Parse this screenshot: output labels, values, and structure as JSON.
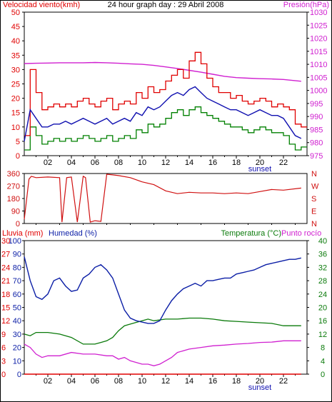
{
  "header": {
    "left_label": "Velocidad viento(kmh)",
    "title": "24 hour graph day : 29 Abril 2008",
    "right_label": "Presión(hPa)"
  },
  "lower_header": {
    "rain_label": "Lluvia (mm)",
    "humidity_label": "Humedad (%)",
    "temperature_label": "Temperatura (°C)",
    "dewpoint_label": "Punto rocío"
  },
  "colors": {
    "frame": "#000000",
    "wind_gust": "#e00000",
    "wind_avg": "#1010b0",
    "wind_low": "#008000",
    "pressure": "#d020d0",
    "direction": "#d01010",
    "humidity": "#0b1ea6",
    "temperature": "#0a7a0a",
    "dewpoint": "#d020d0",
    "rain": "#e00000",
    "grid": "#000000"
  },
  "chart_data": [
    {
      "type": "line",
      "title": "24 hour graph day : 29 Abril 2008",
      "x_ticks": [
        "02",
        "04",
        "06",
        "08",
        "10",
        "12",
        "14",
        "16",
        "18",
        "20",
        "22"
      ],
      "x_note": "sunset",
      "y_left": {
        "label": "Velocidad viento(kmh)",
        "range": [
          0,
          50
        ],
        "ticks": [
          "0",
          "5",
          "10",
          "15",
          "20",
          "25",
          "30",
          "35",
          "40",
          "45",
          "50"
        ]
      },
      "y_right": {
        "label": "Presión(hPa)",
        "range": [
          975,
          1030
        ],
        "ticks": [
          "975",
          "980",
          "985",
          "990",
          "995",
          "1000",
          "1005",
          "1010",
          "1015",
          "1020",
          "1025",
          "1030"
        ]
      },
      "series": [
        {
          "key": "gust",
          "x": [
            0,
            0.5,
            1,
            1.5,
            2,
            2.5,
            3,
            3.5,
            4,
            4.5,
            5,
            5.5,
            6,
            6.5,
            7,
            7.5,
            8,
            8.5,
            9,
            9.5,
            10,
            10.5,
            11,
            11.5,
            12,
            12.5,
            13,
            13.5,
            14,
            14.5,
            15,
            15.5,
            16,
            16.5,
            17,
            17.5,
            18,
            18.5,
            19,
            19.5,
            20,
            20.5,
            21,
            21.5,
            22,
            22.5,
            23,
            23.5
          ],
          "y": [
            7,
            30,
            22,
            16,
            17,
            18,
            17,
            18,
            17,
            19,
            20,
            18,
            17,
            19,
            20,
            16,
            18,
            19,
            18,
            22,
            20,
            24,
            22,
            23,
            26,
            28,
            30,
            27,
            33,
            36,
            32,
            27,
            24,
            22,
            22,
            20,
            21,
            19,
            18,
            19,
            20,
            19,
            17,
            18,
            17,
            16,
            11,
            10
          ]
        },
        {
          "key": "avg",
          "x": [
            0,
            0.5,
            1,
            1.5,
            2,
            2.5,
            3,
            3.5,
            4,
            4.5,
            5,
            5.5,
            6,
            6.5,
            7,
            7.5,
            8,
            8.5,
            9,
            9.5,
            10,
            10.5,
            11,
            11.5,
            12,
            12.5,
            13,
            13.5,
            14,
            14.5,
            15,
            15.5,
            16,
            16.5,
            17,
            17.5,
            18,
            18.5,
            19,
            19.5,
            20,
            20.5,
            21,
            21.5,
            22,
            22.5,
            23,
            23.5
          ],
          "y": [
            5,
            16,
            13,
            10,
            10,
            11,
            11,
            12,
            11,
            12,
            13,
            12,
            11,
            12,
            13,
            11,
            12,
            13,
            12,
            15,
            14,
            17,
            16,
            17,
            19,
            21,
            22,
            21,
            23,
            24,
            22,
            20,
            19,
            18,
            17,
            16,
            16,
            15,
            14,
            15,
            16,
            15,
            14,
            14,
            13,
            10,
            7,
            6
          ]
        },
        {
          "key": "low",
          "x": [
            0,
            0.5,
            1,
            1.5,
            2,
            2.5,
            3,
            3.5,
            4,
            4.5,
            5,
            5.5,
            6,
            6.5,
            7,
            7.5,
            8,
            8.5,
            9,
            9.5,
            10,
            10.5,
            11,
            11.5,
            12,
            12.5,
            13,
            13.5,
            14,
            14.5,
            15,
            15.5,
            16,
            16.5,
            17,
            17.5,
            18,
            18.5,
            19,
            19.5,
            20,
            20.5,
            21,
            21.5,
            22,
            22.5,
            23,
            23.5
          ],
          "y": [
            2,
            10,
            7,
            4,
            5,
            6,
            5,
            6,
            5,
            6,
            7,
            6,
            5,
            6,
            7,
            5,
            6,
            7,
            6,
            9,
            8,
            11,
            10,
            11,
            13,
            15,
            16,
            14,
            16,
            17,
            15,
            14,
            13,
            12,
            11,
            10,
            10,
            9,
            8,
            9,
            10,
            9,
            8,
            8,
            7,
            4,
            2,
            3
          ]
        },
        {
          "key": "pressure",
          "x": [
            0,
            1,
            2,
            3,
            4,
            5,
            6,
            7,
            8,
            9,
            10,
            11,
            12,
            13,
            14,
            15,
            16,
            17,
            18,
            19,
            20,
            21,
            22,
            23.5
          ],
          "y": [
            1010.3,
            1010.4,
            1010.5,
            1010.6,
            1010.6,
            1010.6,
            1010.7,
            1010.6,
            1010.4,
            1010.2,
            1010.0,
            1009.6,
            1009.0,
            1008.4,
            1007.7,
            1007.0,
            1006.2,
            1005.4,
            1004.9,
            1004.7,
            1004.5,
            1004.4,
            1004.2,
            1003.5
          ]
        }
      ]
    },
    {
      "type": "line",
      "y_left": {
        "range": [
          0,
          360
        ],
        "ticks": [
          "0",
          "90",
          "180",
          "270",
          "360"
        ]
      },
      "y_right": {
        "ticks": [
          "N",
          "E",
          "S",
          "W",
          "N"
        ]
      },
      "series": [
        {
          "key": "direction",
          "x": [
            0,
            0.4,
            0.6,
            1,
            2,
            3,
            3.2,
            3.6,
            4,
            4.5,
            5,
            5.2,
            5.6,
            6,
            6.5,
            7,
            7.5,
            8,
            9,
            10,
            11,
            12,
            13,
            14,
            15,
            16,
            17,
            18,
            19,
            20,
            21,
            22,
            23.5
          ],
          "y": [
            30,
            320,
            340,
            330,
            335,
            330,
            10,
            330,
            335,
            10,
            340,
            330,
            10,
            20,
            15,
            355,
            350,
            345,
            330,
            300,
            280,
            235,
            215,
            225,
            220,
            220,
            215,
            220,
            215,
            230,
            245,
            240,
            255
          ]
        }
      ]
    },
    {
      "type": "line",
      "y_left_rain": {
        "label": "Lluvia (mm)",
        "range": [
          0,
          30
        ],
        "ticks": [
          "0",
          "3",
          "6",
          "9",
          "12",
          "15",
          "18",
          "21",
          "24",
          "27",
          "30"
        ]
      },
      "y_left_humidity": {
        "label": "Humedad (%)",
        "range": [
          0,
          100
        ],
        "ticks": [
          "0",
          "10",
          "20",
          "30",
          "40",
          "50",
          "60",
          "70",
          "80",
          "90",
          "100"
        ]
      },
      "y_right": {
        "label": "Temperatura (°C)",
        "range": [
          0,
          40
        ],
        "ticks": [
          "0",
          "4",
          "8",
          "12",
          "16",
          "20",
          "24",
          "28",
          "32",
          "36",
          "40"
        ]
      },
      "series": [
        {
          "key": "humidity",
          "x": [
            0,
            0.5,
            1,
            1.5,
            2,
            2.5,
            3,
            3.5,
            4,
            4.5,
            5,
            5.5,
            6,
            6.5,
            7,
            7.5,
            8,
            8.5,
            9,
            9.5,
            10,
            10.5,
            11,
            11.5,
            12,
            12.5,
            13,
            13.5,
            14,
            14.5,
            15,
            15.5,
            16,
            16.5,
            17,
            17.5,
            18,
            18.5,
            19,
            19.5,
            20,
            20.5,
            21,
            21.5,
            22,
            22.5,
            23,
            23.5
          ],
          "y": [
            88,
            70,
            58,
            56,
            60,
            70,
            72,
            66,
            62,
            63,
            72,
            75,
            80,
            82,
            78,
            72,
            60,
            48,
            42,
            40,
            39,
            38,
            38,
            40,
            48,
            55,
            60,
            64,
            66,
            68,
            66,
            70,
            70,
            71,
            72,
            72,
            75,
            76,
            77,
            78,
            80,
            82,
            83,
            84,
            85,
            86,
            86,
            87
          ]
        },
        {
          "key": "temperature",
          "x": [
            0,
            0.5,
            1,
            2,
            3,
            4,
            5,
            6,
            6.5,
            7,
            7.5,
            8,
            8.5,
            9,
            9.5,
            10,
            10.5,
            11,
            12,
            13,
            14,
            15,
            16,
            17,
            18,
            19,
            20,
            21,
            22,
            23.5
          ],
          "y": [
            12,
            11.5,
            12.5,
            12.5,
            12,
            11,
            9,
            9,
            9.5,
            10,
            11,
            13,
            14.5,
            15,
            15.5,
            16,
            16.5,
            16,
            16.5,
            16.5,
            16.8,
            16.8,
            16.5,
            16,
            15.8,
            15.6,
            15.4,
            15.2,
            14.5,
            14.5
          ]
        },
        {
          "key": "dewpoint",
          "x": [
            0,
            0.5,
            1,
            1.5,
            2,
            3,
            4,
            5,
            6,
            7,
            7.5,
            8,
            8.5,
            9,
            9.5,
            10,
            10.5,
            11,
            11.5,
            12,
            12.5,
            13,
            14,
            15,
            16,
            17,
            18,
            19,
            20,
            21,
            22,
            23.5
          ],
          "y": [
            9,
            8,
            6,
            5,
            5.5,
            5.5,
            6.5,
            6,
            6,
            5.5,
            5.5,
            4.5,
            5,
            4,
            3.5,
            3,
            3,
            2.5,
            3,
            4,
            5,
            6.5,
            7.5,
            8,
            8.5,
            8.7,
            9,
            9.2,
            9.5,
            9.6,
            10,
            10
          ]
        },
        {
          "key": "rain",
          "x": [
            0,
            23.5
          ],
          "y": [
            0,
            0
          ]
        }
      ]
    }
  ]
}
